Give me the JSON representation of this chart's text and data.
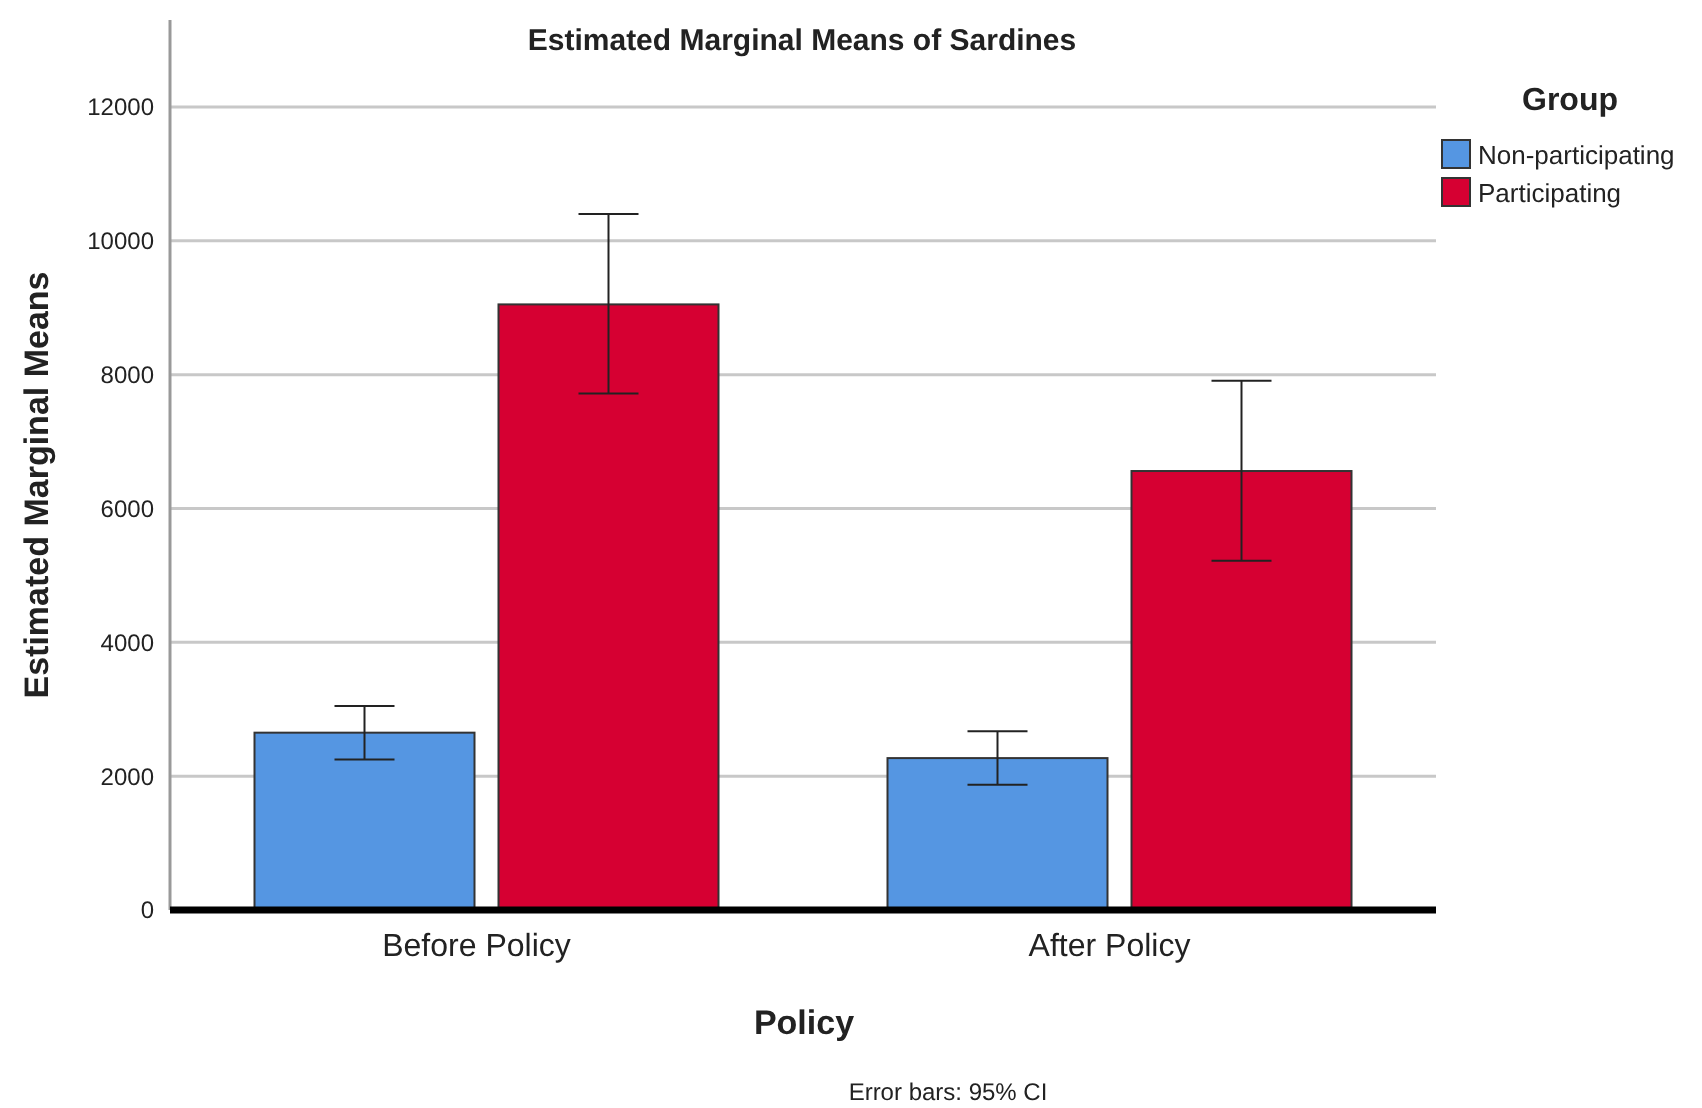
{
  "chart_data": {
    "type": "bar",
    "title": "Estimated Marginal Means of Sardines",
    "xlabel": "Policy",
    "ylabel": "Estimated Marginal Means",
    "legend_title": "Group",
    "annotations": [
      "Error bars: 95% CI"
    ],
    "categories": [
      "Before Policy",
      "After Policy"
    ],
    "series": [
      {
        "name": "Non-participating",
        "color": "#5596e2",
        "values": [
          2650,
          2270
        ],
        "errors": [
          [
            2250,
            3050
          ],
          [
            1870,
            2670
          ]
        ]
      },
      {
        "name": "Participating",
        "color": "#d60032",
        "values": [
          9050,
          6560
        ],
        "errors": [
          [
            7720,
            10400
          ],
          [
            5220,
            7910
          ]
        ]
      }
    ],
    "ylim": [
      0,
      13300
    ],
    "yticks": [
      0,
      2000,
      4000,
      6000,
      8000,
      10000,
      12000
    ],
    "grid": "y",
    "legend": "right"
  }
}
